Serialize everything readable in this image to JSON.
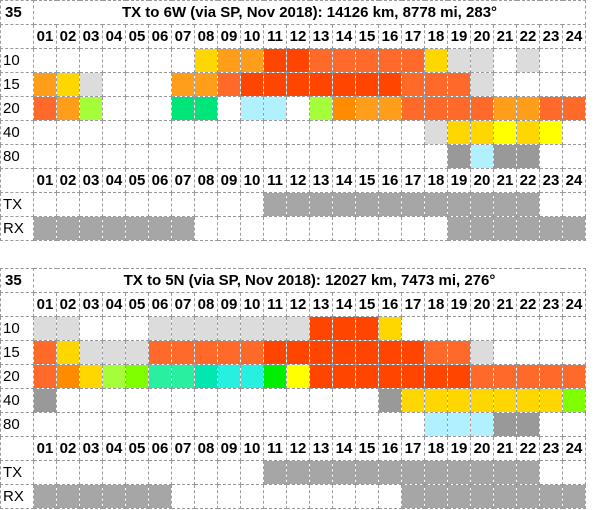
{
  "palette": {
    "W": "#ffffff",
    "L": "#dcdcdc",
    "G": "#a6a6a6",
    "T": "#999999",
    "Y": "#ffd700",
    "y": "#ffff00",
    "O": "#ff9e1a",
    "o": "#ff8c00",
    "R": "#ff4500",
    "r": "#ff6a2a",
    "x": "#ff0000",
    "V": "#80ff00",
    "v": "#a4ff3a",
    "E": "#00e57a",
    "e": "#1ae07a",
    "Q": "#28f0a0",
    "q": "#00e8b0",
    "C": "#28f0e0",
    "c": "#00f0ff",
    "K": "#b0f0ff",
    "g": "#00ee00"
  },
  "hours": [
    "01",
    "02",
    "03",
    "04",
    "05",
    "06",
    "07",
    "08",
    "09",
    "10",
    "11",
    "12",
    "13",
    "14",
    "15",
    "16",
    "17",
    "18",
    "19",
    "20",
    "21",
    "22",
    "23",
    "24"
  ],
  "panels": [
    {
      "id": "6w",
      "corner": "35",
      "title": "TX to 6W (via SP, Nov 2018): 14126 km, 8778 mi, 283°",
      "bands": [
        {
          "label": "10",
          "cells": "WWWWWWWYOORRrrrrrYLLWLWW"
        },
        {
          "label": "15",
          "cells": "OYLWWWOOrRRRRRRRrrrLWWWW"
        },
        {
          "label": "20",
          "cells": "rOvWWWEEXKKWvoOOrrrrOOrr"
        },
        {
          "label": "40",
          "cells": "WWWWWWWWWWWWWWWWWLYYyYyW"
        },
        {
          "label": "80",
          "cells": "WWWWWWWWWWWWWWWWWWTKTTWW"
        }
      ],
      "tx": "WWWWWWWWWWGGGGGGGGGGGGWW",
      "rx": "GGGGGGGWWWWWWWWWWWGGGGGG"
    },
    {
      "id": "5n",
      "corner": "35",
      "title": "TX to 5N (via SP, Nov 2018): 12027 km, 7473 mi, 276°",
      "bands": [
        {
          "label": "10",
          "cells": "LLWWWLLLLLLLRRRYWWWWWWWW"
        },
        {
          "label": "15",
          "cells": "rYLLLrrrrrRRRRRRRrrLWWWW"
        },
        {
          "label": "20",
          "cells": "roYvVQQqCCgyRRRRRRRrrrrr"
        },
        {
          "label": "40",
          "cells": "TWWWWWWWWWWWWWWTYYYYYYYV"
        },
        {
          "label": "80",
          "cells": "WWWWWWWWWWWWWWWWWKKKTTWW"
        }
      ],
      "tx": "WWWWWWWWWWGGGGGGGGGGGGWW",
      "rx": "GGGGGGWWWWWWWWWWGGGGGGGG"
    }
  ],
  "labels": {
    "tx": "TX",
    "rx": "RX"
  }
}
